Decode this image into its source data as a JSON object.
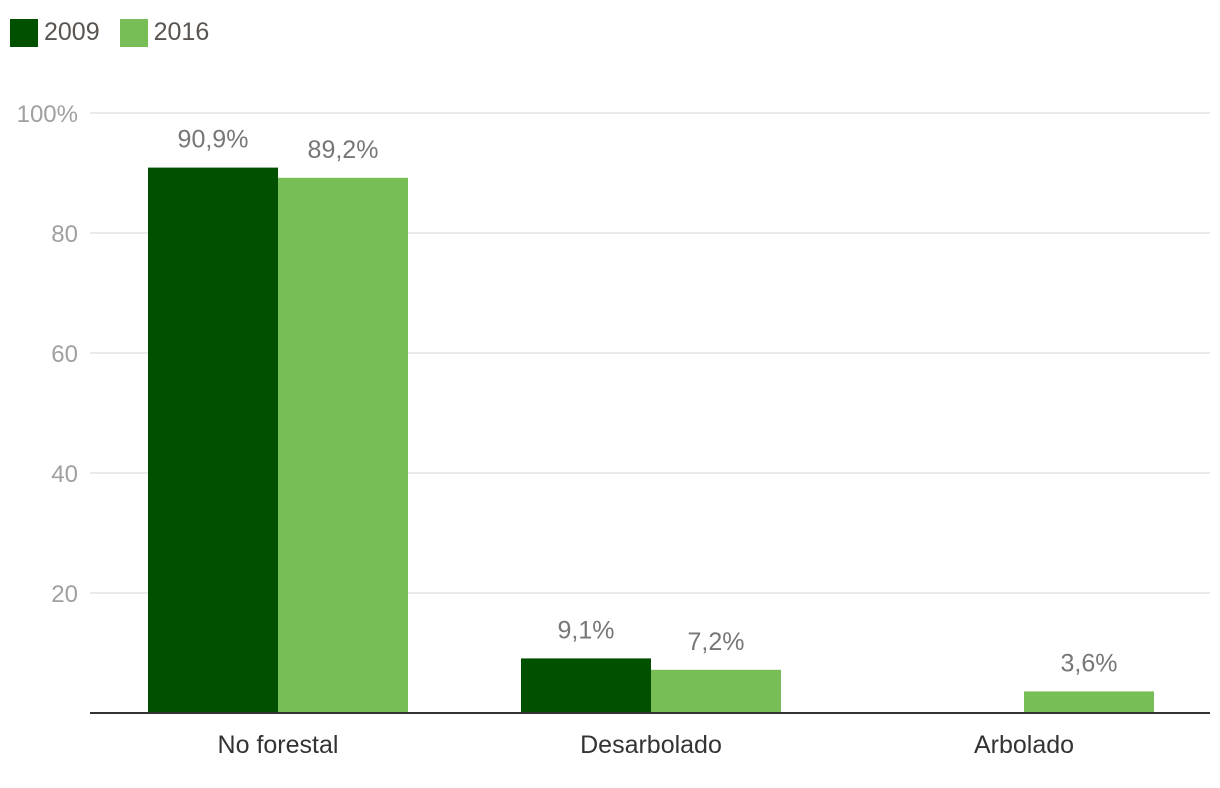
{
  "legend": [
    {
      "label": "2009",
      "color": "#005000"
    },
    {
      "label": "2016",
      "color": "#78be56"
    }
  ],
  "chart_data": {
    "type": "bar",
    "categories": [
      "No forestal",
      "Desarbolado",
      "Arbolado"
    ],
    "series": [
      {
        "name": "2009",
        "values": [
          90.9,
          9.1,
          null
        ],
        "labels": [
          "90,9%",
          "9,1%",
          ""
        ]
      },
      {
        "name": "2016",
        "values": [
          89.2,
          7.2,
          3.6
        ],
        "labels": [
          "89,2%",
          "7,2%",
          "3,6%"
        ]
      }
    ],
    "ylim": [
      0,
      100
    ],
    "yticks": [
      {
        "value": 20,
        "label": "20"
      },
      {
        "value": 40,
        "label": "40"
      },
      {
        "value": 60,
        "label": "60"
      },
      {
        "value": 80,
        "label": "80"
      },
      {
        "value": 100,
        "label": "100%"
      }
    ],
    "grid": true,
    "legend_position": "top-left",
    "colors": [
      "#005000",
      "#78be56"
    ]
  }
}
